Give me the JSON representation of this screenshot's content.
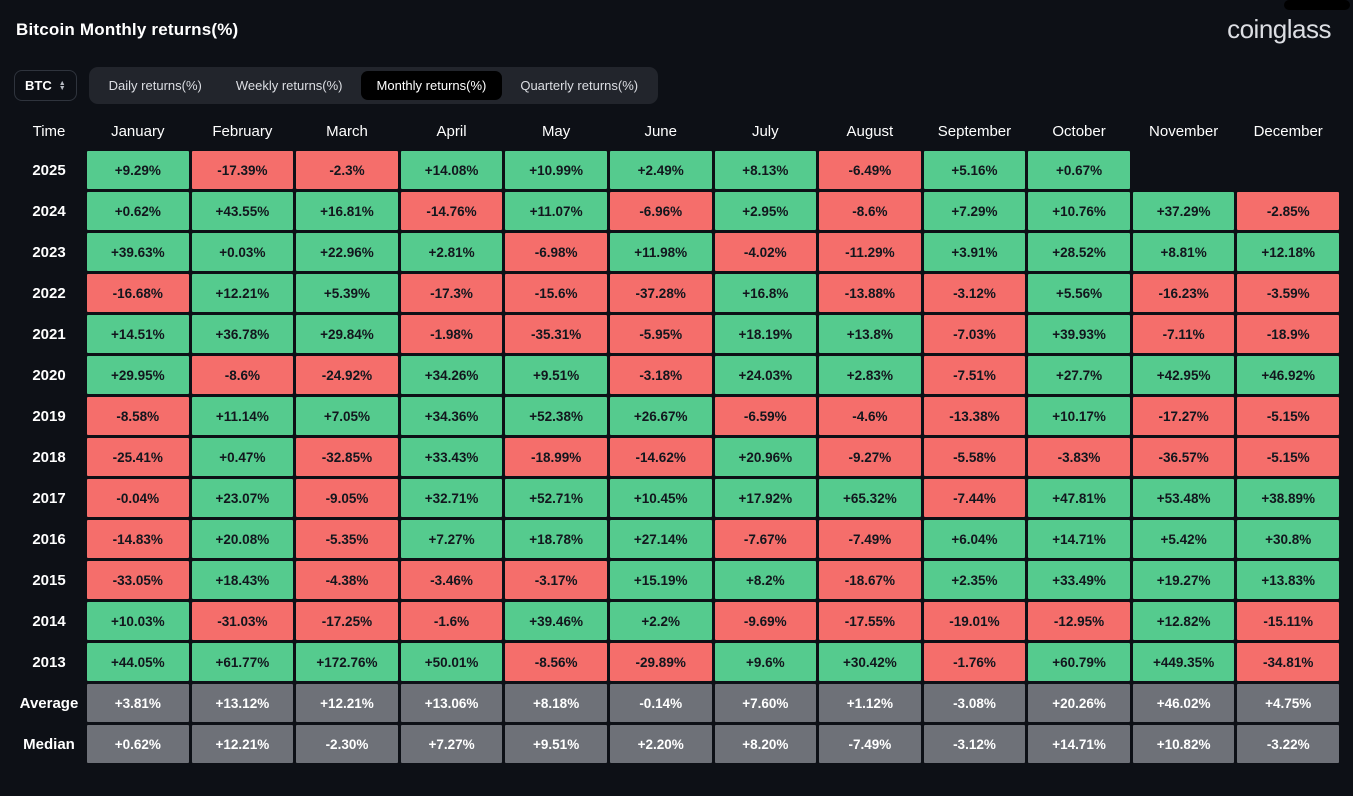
{
  "header": {
    "title": "Bitcoin Monthly returns(%)",
    "logo": "coinglass"
  },
  "controls": {
    "coin_selector": "BTC",
    "tabs": [
      {
        "label": "Daily returns(%)",
        "active": false
      },
      {
        "label": "Weekly returns(%)",
        "active": false
      },
      {
        "label": "Monthly returns(%)",
        "active": true
      },
      {
        "label": "Quarterly returns(%)",
        "active": false
      }
    ]
  },
  "colors": {
    "bg": "#0d1016",
    "positive": "#55cb8e",
    "negative": "#f56e6b",
    "neutral": "#6e7178",
    "tabbar": "#22252c",
    "active_tab": "#000000"
  },
  "table": {
    "time_header": "Time",
    "months": [
      "January",
      "February",
      "March",
      "April",
      "May",
      "June",
      "July",
      "August",
      "September",
      "October",
      "November",
      "December"
    ],
    "rows": [
      {
        "label": "2025",
        "values": [
          "+9.29%",
          "-17.39%",
          "-2.3%",
          "+14.08%",
          "+10.99%",
          "+2.49%",
          "+8.13%",
          "-6.49%",
          "+5.16%",
          "+0.67%",
          "",
          ""
        ]
      },
      {
        "label": "2024",
        "values": [
          "+0.62%",
          "+43.55%",
          "+16.81%",
          "-14.76%",
          "+11.07%",
          "-6.96%",
          "+2.95%",
          "-8.6%",
          "+7.29%",
          "+10.76%",
          "+37.29%",
          "-2.85%"
        ]
      },
      {
        "label": "2023",
        "values": [
          "+39.63%",
          "+0.03%",
          "+22.96%",
          "+2.81%",
          "-6.98%",
          "+11.98%",
          "-4.02%",
          "-11.29%",
          "+3.91%",
          "+28.52%",
          "+8.81%",
          "+12.18%"
        ]
      },
      {
        "label": "2022",
        "values": [
          "-16.68%",
          "+12.21%",
          "+5.39%",
          "-17.3%",
          "-15.6%",
          "-37.28%",
          "+16.8%",
          "-13.88%",
          "-3.12%",
          "+5.56%",
          "-16.23%",
          "-3.59%"
        ]
      },
      {
        "label": "2021",
        "values": [
          "+14.51%",
          "+36.78%",
          "+29.84%",
          "-1.98%",
          "-35.31%",
          "-5.95%",
          "+18.19%",
          "+13.8%",
          "-7.03%",
          "+39.93%",
          "-7.11%",
          "-18.9%"
        ]
      },
      {
        "label": "2020",
        "values": [
          "+29.95%",
          "-8.6%",
          "-24.92%",
          "+34.26%",
          "+9.51%",
          "-3.18%",
          "+24.03%",
          "+2.83%",
          "-7.51%",
          "+27.7%",
          "+42.95%",
          "+46.92%"
        ]
      },
      {
        "label": "2019",
        "values": [
          "-8.58%",
          "+11.14%",
          "+7.05%",
          "+34.36%",
          "+52.38%",
          "+26.67%",
          "-6.59%",
          "-4.6%",
          "-13.38%",
          "+10.17%",
          "-17.27%",
          "-5.15%"
        ]
      },
      {
        "label": "2018",
        "values": [
          "-25.41%",
          "+0.47%",
          "-32.85%",
          "+33.43%",
          "-18.99%",
          "-14.62%",
          "+20.96%",
          "-9.27%",
          "-5.58%",
          "-3.83%",
          "-36.57%",
          "-5.15%"
        ]
      },
      {
        "label": "2017",
        "values": [
          "-0.04%",
          "+23.07%",
          "-9.05%",
          "+32.71%",
          "+52.71%",
          "+10.45%",
          "+17.92%",
          "+65.32%",
          "-7.44%",
          "+47.81%",
          "+53.48%",
          "+38.89%"
        ]
      },
      {
        "label": "2016",
        "values": [
          "-14.83%",
          "+20.08%",
          "-5.35%",
          "+7.27%",
          "+18.78%",
          "+27.14%",
          "-7.67%",
          "-7.49%",
          "+6.04%",
          "+14.71%",
          "+5.42%",
          "+30.8%"
        ]
      },
      {
        "label": "2015",
        "values": [
          "-33.05%",
          "+18.43%",
          "-4.38%",
          "-3.46%",
          "-3.17%",
          "+15.19%",
          "+8.2%",
          "-18.67%",
          "+2.35%",
          "+33.49%",
          "+19.27%",
          "+13.83%"
        ]
      },
      {
        "label": "2014",
        "values": [
          "+10.03%",
          "-31.03%",
          "-17.25%",
          "-1.6%",
          "+39.46%",
          "+2.2%",
          "-9.69%",
          "-17.55%",
          "-19.01%",
          "-12.95%",
          "+12.82%",
          "-15.11%"
        ]
      },
      {
        "label": "2013",
        "values": [
          "+44.05%",
          "+61.77%",
          "+172.76%",
          "+50.01%",
          "-8.56%",
          "-29.89%",
          "+9.6%",
          "+30.42%",
          "-1.76%",
          "+60.79%",
          "+449.35%",
          "-34.81%"
        ]
      },
      {
        "label": "Average",
        "neutral": true,
        "values": [
          "+3.81%",
          "+13.12%",
          "+12.21%",
          "+13.06%",
          "+8.18%",
          "-0.14%",
          "+7.60%",
          "+1.12%",
          "-3.08%",
          "+20.26%",
          "+46.02%",
          "+4.75%"
        ]
      },
      {
        "label": "Median",
        "neutral": true,
        "values": [
          "+0.62%",
          "+12.21%",
          "-2.30%",
          "+7.27%",
          "+9.51%",
          "+2.20%",
          "+8.20%",
          "-7.49%",
          "-3.12%",
          "+14.71%",
          "+10.82%",
          "-3.22%"
        ]
      }
    ]
  }
}
